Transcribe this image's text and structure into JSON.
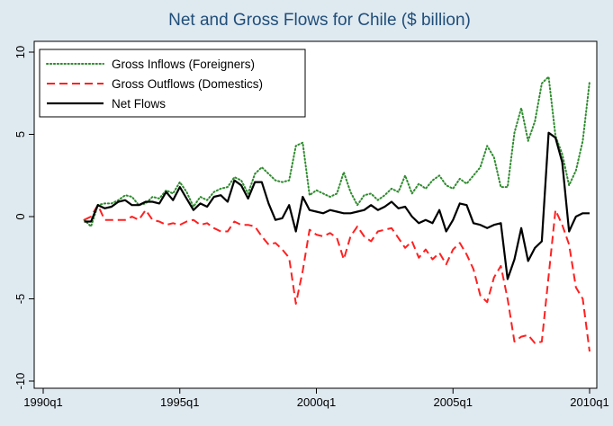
{
  "chart_data": {
    "type": "line",
    "title": "Net and Gross Flows for Chile ($ billion)",
    "xlabel": "",
    "ylabel": "",
    "grid": false,
    "legend_position": "top-left",
    "xlim": [
      1990.0,
      2010.0
    ],
    "ylim": [
      -10,
      10
    ],
    "x_ticks": [
      {
        "value": 1990.0,
        "label": "1990q1"
      },
      {
        "value": 1995.0,
        "label": "1995q1"
      },
      {
        "value": 2000.0,
        "label": "2000q1"
      },
      {
        "value": 2005.0,
        "label": "2005q1"
      },
      {
        "value": 2010.0,
        "label": "2010q1"
      }
    ],
    "y_ticks": [
      {
        "value": -10,
        "label": "-10"
      },
      {
        "value": -5,
        "label": "-5"
      },
      {
        "value": 0,
        "label": "0"
      },
      {
        "value": 5,
        "label": "5"
      },
      {
        "value": 10,
        "label": "10"
      }
    ],
    "series": [
      {
        "name": "Gross Inflows (Foreigners)",
        "color": "#2e8b2e",
        "style": "dotted",
        "points": [
          [
            1991.5,
            -0.2
          ],
          [
            1991.75,
            -0.6
          ],
          [
            1992.0,
            0.7
          ],
          [
            1992.25,
            0.8
          ],
          [
            1992.5,
            0.8
          ],
          [
            1992.75,
            1.0
          ],
          [
            1993.0,
            1.3
          ],
          [
            1993.25,
            1.2
          ],
          [
            1993.5,
            0.7
          ],
          [
            1993.75,
            0.8
          ],
          [
            1994.0,
            1.2
          ],
          [
            1994.25,
            1.1
          ],
          [
            1994.5,
            1.6
          ],
          [
            1994.75,
            1.4
          ],
          [
            1995.0,
            2.1
          ],
          [
            1995.25,
            1.5
          ],
          [
            1995.5,
            0.6
          ],
          [
            1995.75,
            1.2
          ],
          [
            1996.0,
            1.0
          ],
          [
            1996.25,
            1.5
          ],
          [
            1996.5,
            1.7
          ],
          [
            1996.75,
            1.8
          ],
          [
            1997.0,
            2.4
          ],
          [
            1997.25,
            2.2
          ],
          [
            1997.5,
            1.4
          ],
          [
            1997.75,
            2.6
          ],
          [
            1998.0,
            3.0
          ],
          [
            1998.25,
            2.6
          ],
          [
            1998.5,
            2.2
          ],
          [
            1998.75,
            2.1
          ],
          [
            1999.0,
            2.2
          ],
          [
            1999.25,
            4.3
          ],
          [
            1999.5,
            4.5
          ],
          [
            1999.75,
            1.3
          ],
          [
            2000.0,
            1.6
          ],
          [
            2000.25,
            1.4
          ],
          [
            2000.5,
            1.2
          ],
          [
            2000.75,
            1.4
          ],
          [
            2001.0,
            2.7
          ],
          [
            2001.25,
            1.5
          ],
          [
            2001.5,
            0.7
          ],
          [
            2001.75,
            1.3
          ],
          [
            2002.0,
            1.4
          ],
          [
            2002.25,
            1.0
          ],
          [
            2002.5,
            1.3
          ],
          [
            2002.75,
            1.7
          ],
          [
            2003.0,
            1.5
          ],
          [
            2003.25,
            2.5
          ],
          [
            2003.5,
            1.4
          ],
          [
            2003.75,
            2.0
          ],
          [
            2004.0,
            1.7
          ],
          [
            2004.25,
            2.2
          ],
          [
            2004.5,
            2.5
          ],
          [
            2004.75,
            1.9
          ],
          [
            2005.0,
            1.7
          ],
          [
            2005.25,
            2.3
          ],
          [
            2005.5,
            2.0
          ],
          [
            2005.75,
            2.5
          ],
          [
            2006.0,
            3.0
          ],
          [
            2006.25,
            4.3
          ],
          [
            2006.5,
            3.6
          ],
          [
            2006.75,
            1.8
          ],
          [
            2007.0,
            1.8
          ],
          [
            2007.25,
            5.1
          ],
          [
            2007.5,
            6.6
          ],
          [
            2007.75,
            4.6
          ],
          [
            2008.0,
            5.8
          ],
          [
            2008.25,
            8.1
          ],
          [
            2008.5,
            8.5
          ],
          [
            2008.75,
            4.9
          ],
          [
            2009.0,
            3.8
          ],
          [
            2009.25,
            1.9
          ],
          [
            2009.5,
            2.8
          ],
          [
            2009.75,
            4.6
          ],
          [
            2010.0,
            8.2
          ]
        ]
      },
      {
        "name": "Gross Outflows (Domestics)",
        "color": "#ff2020",
        "style": "dashed",
        "points": [
          [
            1991.5,
            -0.2
          ],
          [
            1991.75,
            0.0
          ],
          [
            1992.0,
            0.7
          ],
          [
            1992.25,
            -0.2
          ],
          [
            1992.5,
            -0.2
          ],
          [
            1992.75,
            -0.2
          ],
          [
            1993.0,
            -0.2
          ],
          [
            1993.25,
            0.0
          ],
          [
            1993.5,
            -0.2
          ],
          [
            1993.75,
            0.4
          ],
          [
            1994.0,
            -0.2
          ],
          [
            1994.25,
            -0.3
          ],
          [
            1994.5,
            -0.5
          ],
          [
            1994.75,
            -0.4
          ],
          [
            1995.0,
            -0.5
          ],
          [
            1995.25,
            -0.3
          ],
          [
            1995.5,
            -0.2
          ],
          [
            1995.75,
            -0.5
          ],
          [
            1996.0,
            -0.4
          ],
          [
            1996.25,
            -0.7
          ],
          [
            1996.5,
            -0.9
          ],
          [
            1996.75,
            -0.9
          ],
          [
            1997.0,
            -0.3
          ],
          [
            1997.25,
            -0.5
          ],
          [
            1997.5,
            -0.5
          ],
          [
            1997.75,
            -0.6
          ],
          [
            1998.0,
            -1.2
          ],
          [
            1998.25,
            -1.7
          ],
          [
            1998.5,
            -1.6
          ],
          [
            1998.75,
            -2.0
          ],
          [
            1999.0,
            -2.5
          ],
          [
            1999.25,
            -5.3
          ],
          [
            1999.5,
            -3.3
          ],
          [
            1999.75,
            -0.8
          ],
          [
            2000.0,
            -1.1
          ],
          [
            2000.25,
            -1.2
          ],
          [
            2000.5,
            -1.0
          ],
          [
            2000.75,
            -1.3
          ],
          [
            2001.0,
            -2.6
          ],
          [
            2001.25,
            -1.2
          ],
          [
            2001.5,
            -0.6
          ],
          [
            2001.75,
            -1.2
          ],
          [
            2002.0,
            -1.5
          ],
          [
            2002.25,
            -0.9
          ],
          [
            2002.5,
            -0.8
          ],
          [
            2002.75,
            -0.7
          ],
          [
            2003.0,
            -1.3
          ],
          [
            2003.25,
            -1.9
          ],
          [
            2003.5,
            -1.5
          ],
          [
            2003.75,
            -2.5
          ],
          [
            2004.0,
            -2.0
          ],
          [
            2004.25,
            -2.6
          ],
          [
            2004.5,
            -2.2
          ],
          [
            2004.75,
            -2.9
          ],
          [
            2005.0,
            -2.0
          ],
          [
            2005.25,
            -1.6
          ],
          [
            2005.5,
            -2.3
          ],
          [
            2005.75,
            -3.2
          ],
          [
            2006.0,
            -4.8
          ],
          [
            2006.25,
            -5.2
          ],
          [
            2006.5,
            -3.7
          ],
          [
            2006.75,
            -3.0
          ],
          [
            2007.0,
            -5.0
          ],
          [
            2007.25,
            -7.6
          ],
          [
            2007.5,
            -7.3
          ],
          [
            2007.75,
            -7.2
          ],
          [
            2008.0,
            -7.7
          ],
          [
            2008.25,
            -7.6
          ],
          [
            2008.5,
            -3.6
          ],
          [
            2008.75,
            0.4
          ],
          [
            2009.0,
            -0.5
          ],
          [
            2009.25,
            -1.7
          ],
          [
            2009.5,
            -4.3
          ],
          [
            2009.75,
            -5.0
          ],
          [
            2010.0,
            -8.2
          ]
        ]
      },
      {
        "name": "Net Flows",
        "color": "#000000",
        "style": "solid",
        "points": [
          [
            1991.5,
            -0.3
          ],
          [
            1991.75,
            -0.3
          ],
          [
            1992.0,
            0.7
          ],
          [
            1992.25,
            0.5
          ],
          [
            1992.5,
            0.6
          ],
          [
            1992.75,
            0.9
          ],
          [
            1993.0,
            1.0
          ],
          [
            1993.25,
            0.7
          ],
          [
            1993.5,
            0.7
          ],
          [
            1993.75,
            0.9
          ],
          [
            1994.0,
            0.9
          ],
          [
            1994.25,
            0.8
          ],
          [
            1994.5,
            1.5
          ],
          [
            1994.75,
            1.0
          ],
          [
            1995.0,
            1.8
          ],
          [
            1995.25,
            1.1
          ],
          [
            1995.5,
            0.4
          ],
          [
            1995.75,
            0.8
          ],
          [
            1996.0,
            0.6
          ],
          [
            1996.25,
            1.2
          ],
          [
            1996.5,
            1.3
          ],
          [
            1996.75,
            0.9
          ],
          [
            1997.0,
            2.2
          ],
          [
            1997.25,
            1.9
          ],
          [
            1997.5,
            1.1
          ],
          [
            1997.75,
            2.1
          ],
          [
            1998.0,
            2.1
          ],
          [
            1998.25,
            0.8
          ],
          [
            1998.5,
            -0.2
          ],
          [
            1998.75,
            -0.1
          ],
          [
            1999.0,
            0.7
          ],
          [
            1999.25,
            -0.9
          ],
          [
            1999.5,
            1.2
          ],
          [
            1999.75,
            0.4
          ],
          [
            2000.0,
            0.3
          ],
          [
            2000.25,
            0.2
          ],
          [
            2000.5,
            0.4
          ],
          [
            2000.75,
            0.3
          ],
          [
            2001.0,
            0.2
          ],
          [
            2001.25,
            0.2
          ],
          [
            2001.5,
            0.3
          ],
          [
            2001.75,
            0.4
          ],
          [
            2002.0,
            0.7
          ],
          [
            2002.25,
            0.4
          ],
          [
            2002.5,
            0.6
          ],
          [
            2002.75,
            0.9
          ],
          [
            2003.0,
            0.5
          ],
          [
            2003.25,
            0.6
          ],
          [
            2003.5,
            0.0
          ],
          [
            2003.75,
            -0.4
          ],
          [
            2004.0,
            -0.2
          ],
          [
            2004.25,
            -0.4
          ],
          [
            2004.5,
            0.4
          ],
          [
            2004.75,
            -0.9
          ],
          [
            2005.0,
            -0.2
          ],
          [
            2005.25,
            0.8
          ],
          [
            2005.5,
            0.7
          ],
          [
            2005.75,
            -0.4
          ],
          [
            2006.0,
            -0.5
          ],
          [
            2006.25,
            -0.7
          ],
          [
            2006.5,
            -0.5
          ],
          [
            2006.75,
            -0.4
          ],
          [
            2007.0,
            -3.8
          ],
          [
            2007.25,
            -2.6
          ],
          [
            2007.5,
            -0.7
          ],
          [
            2007.75,
            -2.7
          ],
          [
            2008.0,
            -1.9
          ],
          [
            2008.25,
            -1.5
          ],
          [
            2008.5,
            5.1
          ],
          [
            2008.75,
            4.8
          ],
          [
            2009.0,
            3.3
          ],
          [
            2009.25,
            -0.9
          ],
          [
            2009.5,
            0.0
          ],
          [
            2009.75,
            0.2
          ],
          [
            2010.0,
            0.2
          ]
        ]
      }
    ]
  }
}
